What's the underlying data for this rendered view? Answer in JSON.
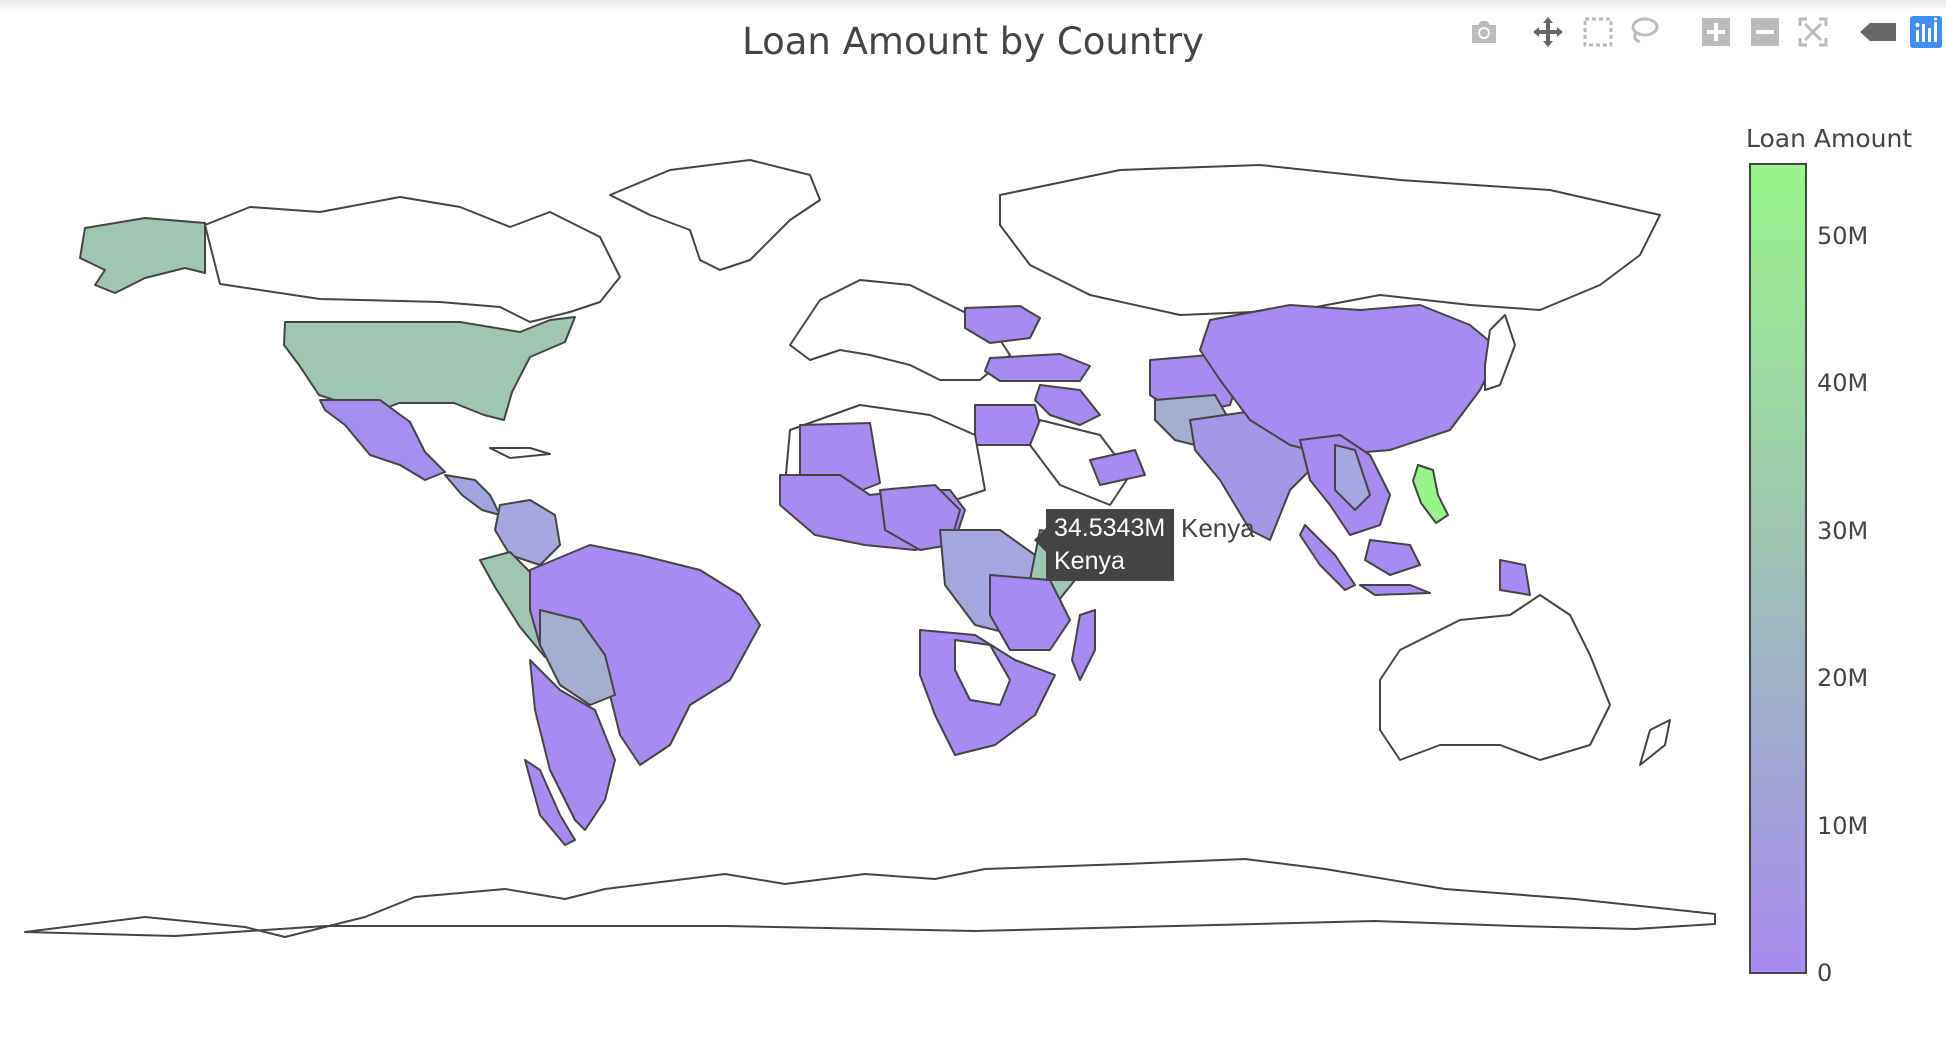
{
  "title": "Loan Amount by Country",
  "modebar": {
    "buttons": [
      {
        "name": "camera-icon",
        "label": "Download plot as a png"
      },
      {
        "name": "pan-icon",
        "label": "Pan"
      },
      {
        "name": "box-select-icon",
        "label": "Box Select"
      },
      {
        "name": "lasso-icon",
        "label": "Lasso Select"
      },
      {
        "name": "zoom-in-icon",
        "label": "Zoom in"
      },
      {
        "name": "zoom-out-icon",
        "label": "Zoom out"
      },
      {
        "name": "reset-icon",
        "label": "Reset"
      },
      {
        "name": "hover-closest-icon",
        "label": "Show closest data on hover"
      },
      {
        "name": "plotly-logo-icon",
        "label": "Produced with Plotly"
      }
    ]
  },
  "colorbar": {
    "title": "Loan Amount",
    "ticks": [
      "0",
      "10M",
      "20M",
      "30M",
      "40M",
      "50M"
    ],
    "tick_values": [
      0,
      10000000,
      20000000,
      30000000,
      40000000,
      50000000
    ],
    "range": [
      0,
      55000000
    ],
    "color_low": "#a78bf0",
    "color_mid": "#9ec6b2",
    "color_high": "#98f58a"
  },
  "hover": {
    "value": "34.5343M",
    "country": "Kenya",
    "trace_name": "Kenya"
  },
  "chart_data": {
    "type": "choropleth",
    "title": "Loan Amount by Country",
    "colorbar_title": "Loan Amount",
    "zmin": 0,
    "zmax": 55000000,
    "regions": [
      {
        "country": "Philippines",
        "value": 55000000
      },
      {
        "country": "Kenya",
        "value": 34534300
      },
      {
        "country": "United States",
        "value": 31000000
      },
      {
        "country": "Peru",
        "value": 30000000
      },
      {
        "country": "Cambodia",
        "value": 20000000
      },
      {
        "country": "Paraguay",
        "value": 19000000
      },
      {
        "country": "Bolivia",
        "value": 18000000
      },
      {
        "country": "Ecuador",
        "value": 17000000
      },
      {
        "country": "Colombia",
        "value": 15000000
      },
      {
        "country": "Pakistan",
        "value": 14000000
      },
      {
        "country": "Tajikistan",
        "value": 13000000
      },
      {
        "country": "Uganda",
        "value": 12000000
      },
      {
        "country": "DR Congo",
        "value": 11000000
      },
      {
        "country": "El Salvador",
        "value": 11000000
      },
      {
        "country": "India",
        "value": 9000000
      },
      {
        "country": "Nicaragua",
        "value": 9000000
      },
      {
        "country": "Vietnam",
        "value": 9000000
      },
      {
        "country": "Mexico",
        "value": 5000000
      },
      {
        "country": "Brazil",
        "value": 1000000
      },
      {
        "country": "China",
        "value": 1000000
      }
    ]
  }
}
